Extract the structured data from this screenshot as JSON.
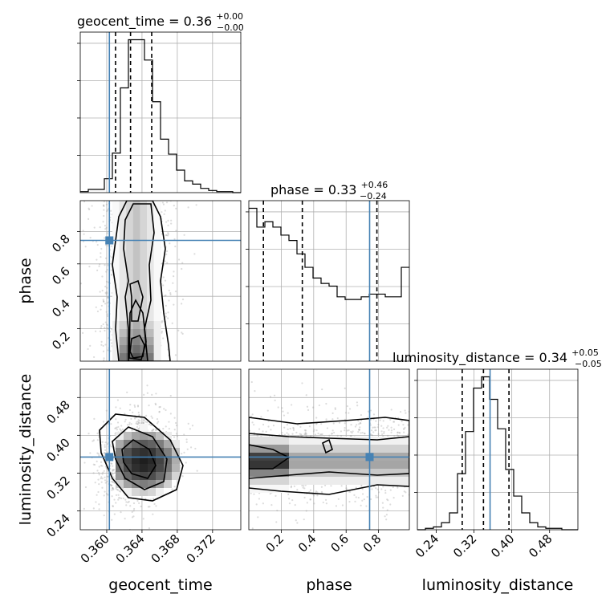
{
  "chart_data": {
    "type": "corner",
    "parameters": [
      "geocent_time",
      "phase",
      "luminosity_distance"
    ],
    "truths": {
      "geocent_time": 0.3603,
      "phase": 0.745,
      "luminosity_distance": 0.354
    },
    "titles": [
      {
        "param": "geocent_time",
        "label": "geocent_time",
        "median": "0.36",
        "plus": "+0.00",
        "minus": "−0.00"
      },
      {
        "param": "phase",
        "label": "phase",
        "median": "0.33",
        "plus": "+0.46",
        "minus": "−0.24"
      },
      {
        "param": "luminosity_distance",
        "label": "luminosity_distance",
        "median": "0.34",
        "plus": "+0.05",
        "minus": "−0.05"
      }
    ],
    "ranges": {
      "geocent_time": [
        0.357,
        0.3752
      ],
      "phase": [
        0.0,
        0.99
      ],
      "luminosity_distance": [
        0.2,
        0.54
      ]
    },
    "ticks": {
      "geocent_time": [
        "0.360",
        "0.364",
        "0.368",
        "0.372"
      ],
      "phase": [
        "0.2",
        "0.4",
        "0.6",
        "0.8"
      ],
      "luminosity_distance": [
        "0.24",
        "0.32",
        "0.40",
        "0.48"
      ]
    },
    "quantiles": {
      "geocent_time": [
        0.361,
        0.3627,
        0.3651
      ],
      "phase": [
        0.09,
        0.33,
        0.79
      ],
      "luminosity_distance": [
        0.295,
        0.34,
        0.394
      ]
    },
    "histograms": {
      "geocent_time": {
        "edges_range": [
          0.357,
          0.3752
        ],
        "counts": [
          1,
          3,
          3,
          13,
          37,
          98,
          143,
          143,
          124,
          85,
          50,
          36,
          21,
          11,
          8,
          4,
          2,
          1,
          1,
          0
        ]
      },
      "phase": {
        "edges_range": [
          0.0,
          0.99
        ],
        "counts": [
          57,
          50,
          52,
          50,
          47,
          45,
          40,
          35,
          31,
          29,
          28,
          24,
          23,
          23,
          24,
          25,
          25,
          24,
          24,
          35
        ]
      },
      "luminosity_distance": {
        "edges_range": [
          0.2,
          0.54
        ],
        "counts": [
          0,
          1,
          2,
          5,
          12,
          40,
          70,
          101,
          109,
          93,
          72,
          43,
          24,
          12,
          5,
          2,
          1,
          1,
          0,
          0
        ]
      }
    },
    "xlabel": [
      "geocent_time",
      "phase",
      "luminosity_distance"
    ],
    "ylabel": [
      "",
      "phase",
      "luminosity_distance"
    ],
    "grid": true
  }
}
